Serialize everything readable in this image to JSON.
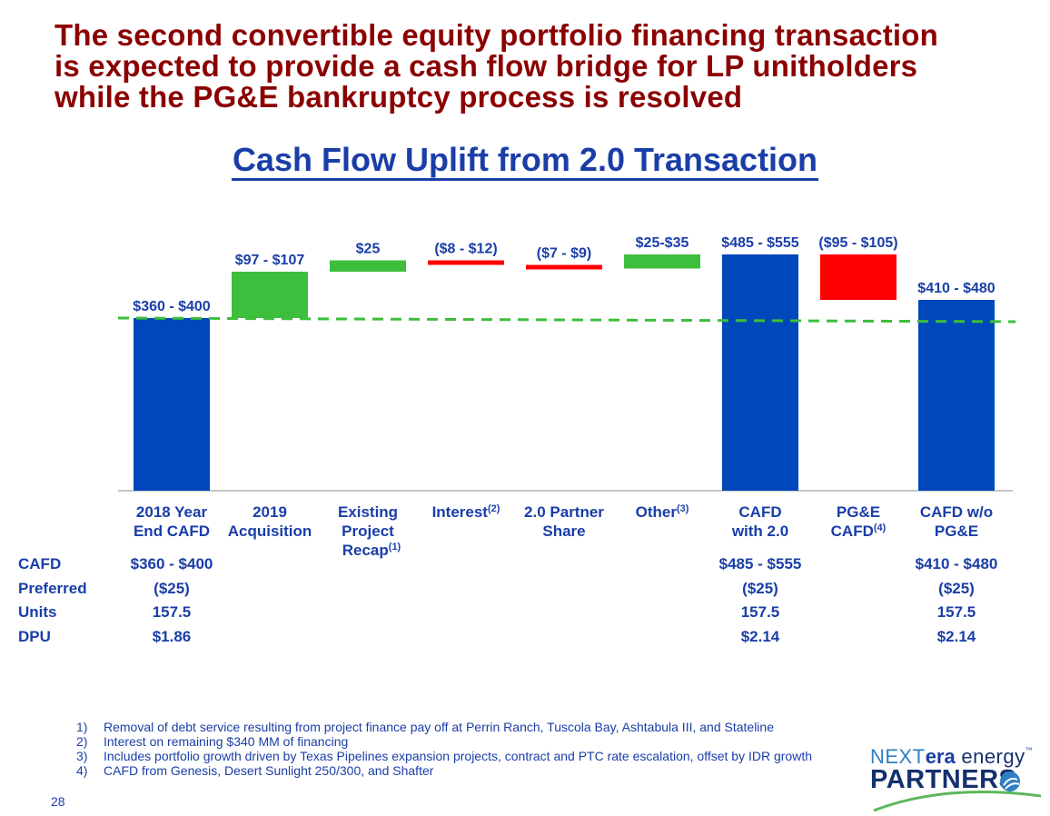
{
  "headline": [
    "The second convertible equity portfolio financing transaction",
    "is expected to provide a cash flow bridge for LP unitholders",
    "while the PG&E bankruptcy process is resolved"
  ],
  "chart_title": "Cash Flow Uplift from 2.0 Transaction",
  "chart_data": {
    "type": "bar",
    "subtype": "waterfall",
    "title": "Cash Flow Uplift from 2.0 Transaction",
    "categories": [
      {
        "lines": [
          "2018 Year",
          "End CAFD"
        ]
      },
      {
        "lines": [
          "2019",
          "Acquisition"
        ]
      },
      {
        "lines": [
          "Existing",
          "Project",
          "Recap"
        ],
        "footnote": "(1)"
      },
      {
        "lines": [
          "Interest"
        ],
        "footnote": "(2)"
      },
      {
        "lines": [
          "2.0 Partner",
          "Share"
        ]
      },
      {
        "lines": [
          "Other"
        ],
        "footnote": "(3)"
      },
      {
        "lines": [
          "CAFD",
          "with 2.0"
        ]
      },
      {
        "lines": [
          "PG&E",
          "CAFD"
        ],
        "footnote": "(4)"
      },
      {
        "lines": [
          "CAFD w/o",
          "PG&E"
        ]
      }
    ],
    "bars": [
      {
        "kind": "total",
        "from": 0,
        "to": 380,
        "label": "$360 - $400",
        "color": "#0047bb"
      },
      {
        "kind": "increase",
        "from": 380,
        "to": 482,
        "label": "$97 - $107",
        "color": "#3dbe3d"
      },
      {
        "kind": "increase",
        "from": 482,
        "to": 507,
        "label": "$25",
        "color": "#3dbe3d"
      },
      {
        "kind": "decrease",
        "from": 507,
        "to": 497,
        "label": "($8 - $12)",
        "color": "#ff0000"
      },
      {
        "kind": "decrease",
        "from": 497,
        "to": 489,
        "label": "($7 - $9)",
        "color": "#ff0000"
      },
      {
        "kind": "increase",
        "from": 489,
        "to": 520,
        "label": "$25-$35",
        "color": "#3dbe3d"
      },
      {
        "kind": "total",
        "from": 0,
        "to": 520,
        "label": "$485 - $555",
        "color": "#0047bb"
      },
      {
        "kind": "decrease",
        "from": 520,
        "to": 420,
        "label": "($95 - $105)",
        "color": "#ff0000"
      },
      {
        "kind": "total",
        "from": 0,
        "to": 420,
        "label": "$410 - $480",
        "color": "#0047bb"
      }
    ],
    "reference_line": {
      "value": 380,
      "style": "dashed",
      "color": "#3dbe3d"
    },
    "ylim": [
      0,
      560
    ],
    "grid": false,
    "xlabel": "",
    "ylabel": ""
  },
  "table": {
    "rows": [
      {
        "label": "CAFD",
        "values": [
          "$360 - $400",
          "$485 - $555",
          "$410 - $480"
        ]
      },
      {
        "label": "Preferred",
        "values": [
          "($25)",
          "($25)",
          "($25)"
        ]
      },
      {
        "label": "Units",
        "values": [
          "157.5",
          "157.5",
          "157.5"
        ]
      },
      {
        "label": "DPU",
        "values": [
          "$1.86",
          "$2.14",
          "$2.14"
        ]
      }
    ]
  },
  "footnotes": [
    {
      "num": "1)",
      "text": "Removal of debt service resulting from project finance pay off at Perrin Ranch, Tuscola Bay, Ashtabula III, and Stateline"
    },
    {
      "num": "2)",
      "text": "Interest on remaining $340 MM of financing"
    },
    {
      "num": "3)",
      "text": "Includes portfolio growth driven by Texas Pipelines expansion projects, contract and PTC rate escalation, offset by IDR growth"
    },
    {
      "num": "4)",
      "text": "CAFD from Genesis, Desert Sunlight 250/300, and Shafter"
    }
  ],
  "page_number": "28",
  "logo": {
    "line1_a": "NEXT",
    "line1_b": "era",
    "line1_c": " energy",
    "tm": "™",
    "line2": "PARTNERS"
  }
}
